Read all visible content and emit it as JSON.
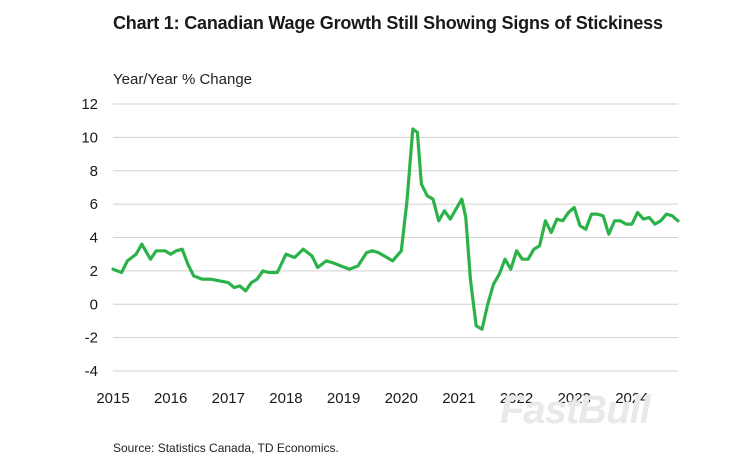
{
  "chart_data": {
    "type": "line",
    "title": "Chart 1: Canadian Wage Growth Still Showing Signs of Stickiness",
    "ylabel": "Year/Year % Change",
    "xlabel": "",
    "source": "Source: Statistics Canada, TD Economics.",
    "ylim": [
      -4,
      12
    ],
    "yticks": [
      "12",
      "10",
      "8",
      "6",
      "4",
      "2",
      "0",
      "-2",
      "-4"
    ],
    "xlim": [
      2015.0,
      2024.8
    ],
    "xticks": [
      "2015",
      "2016",
      "2017",
      "2018",
      "2019",
      "2020",
      "2021",
      "2022",
      "2023",
      "2024"
    ],
    "grid": "horizontal",
    "line_color": "#2db24a",
    "series": [
      {
        "x": [
          2015.0,
          2015.15,
          2015.25,
          2015.4,
          2015.5,
          2015.65,
          2015.75,
          2015.9,
          2016.0,
          2016.1,
          2016.2,
          2016.3,
          2016.4,
          2016.55,
          2016.7,
          2016.85,
          2017.0,
          2017.1,
          2017.2,
          2017.3,
          2017.4,
          2017.5,
          2017.6,
          2017.7,
          2017.85,
          2018.0,
          2018.15,
          2018.3,
          2018.45,
          2018.55,
          2018.7,
          2018.8,
          2018.95,
          2019.1,
          2019.25,
          2019.4,
          2019.5,
          2019.6,
          2019.75,
          2019.85,
          2020.0,
          2020.1,
          2020.2,
          2020.28,
          2020.35,
          2020.45,
          2020.55,
          2020.65,
          2020.75,
          2020.85,
          2020.95,
          2021.05,
          2021.12,
          2021.2,
          2021.3,
          2021.4,
          2021.5,
          2021.6,
          2021.7,
          2021.8,
          2021.9,
          2022.0,
          2022.1,
          2022.2,
          2022.3,
          2022.4,
          2022.5,
          2022.6,
          2022.7,
          2022.8,
          2022.9,
          2023.0,
          2023.1,
          2023.2,
          2023.3,
          2023.4,
          2023.5,
          2023.6,
          2023.7,
          2023.8,
          2023.9,
          2024.0,
          2024.1,
          2024.2,
          2024.3,
          2024.4,
          2024.5,
          2024.6,
          2024.7,
          2024.8
        ],
        "y": [
          2.1,
          1.9,
          2.6,
          3.0,
          3.6,
          2.7,
          3.2,
          3.2,
          3.0,
          3.2,
          3.3,
          2.4,
          1.7,
          1.5,
          1.5,
          1.4,
          1.3,
          1.0,
          1.1,
          0.8,
          1.3,
          1.5,
          2.0,
          1.9,
          1.9,
          3.0,
          2.8,
          3.3,
          2.9,
          2.2,
          2.6,
          2.5,
          2.3,
          2.1,
          2.3,
          3.1,
          3.2,
          3.1,
          2.8,
          2.6,
          3.2,
          6.2,
          10.5,
          10.3,
          7.2,
          6.5,
          6.3,
          5.0,
          5.6,
          5.1,
          5.7,
          6.3,
          5.2,
          1.5,
          -1.3,
          -1.5,
          0.0,
          1.2,
          1.8,
          2.7,
          2.1,
          3.2,
          2.7,
          2.7,
          3.3,
          3.5,
          5.0,
          4.3,
          5.1,
          5.0,
          5.5,
          5.8,
          4.7,
          4.5,
          5.4,
          5.4,
          5.3,
          4.2,
          5.0,
          5.0,
          4.8,
          4.8,
          5.5,
          5.1,
          5.2,
          4.8,
          5.0,
          5.4,
          5.3,
          5.0
        ]
      }
    ]
  },
  "watermark": "FastBull"
}
